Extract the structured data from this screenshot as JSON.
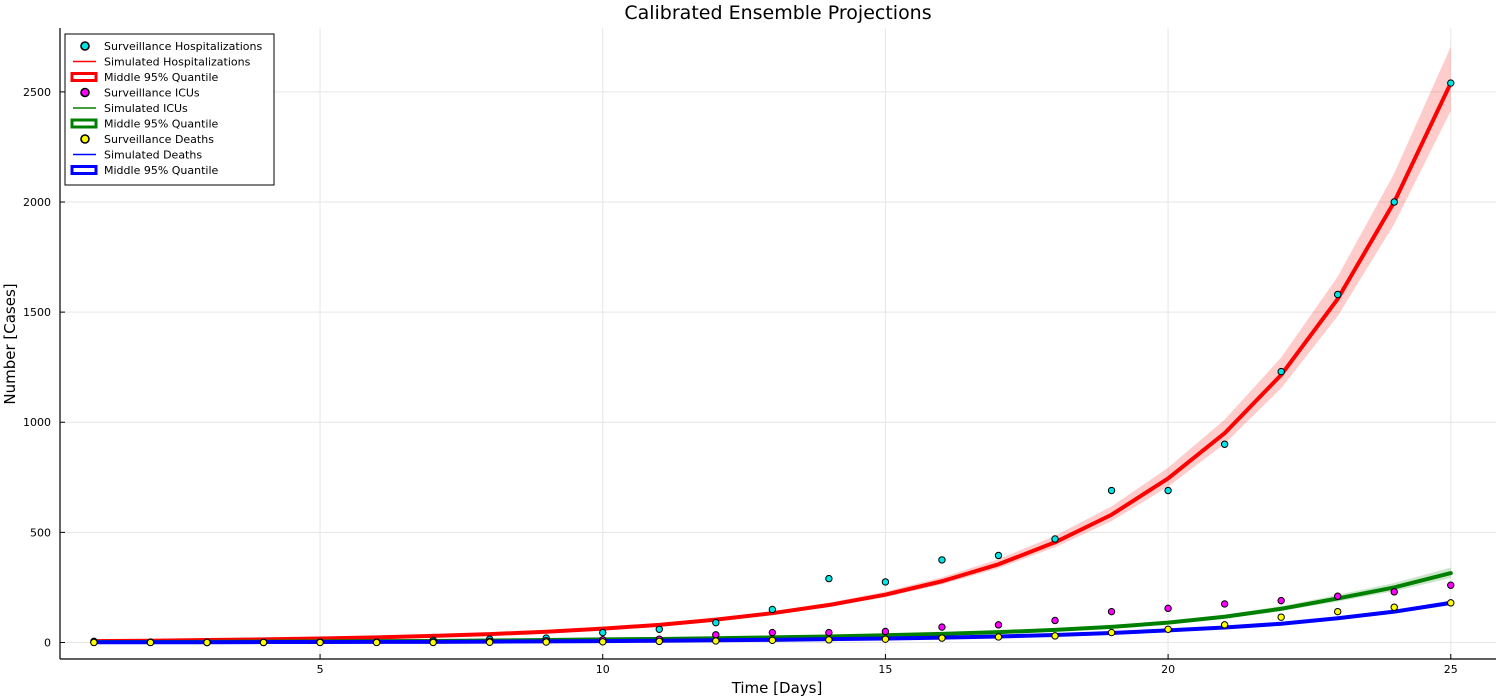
{
  "chart_data": {
    "type": "line",
    "title": "Calibrated Ensemble Projections",
    "xlabel": "Time [Days]",
    "ylabel": "Number [Cases]",
    "xlim": [
      0.4,
      25.8
    ],
    "ylim": [
      -75,
      2790
    ],
    "xticks": [
      5,
      10,
      15,
      20,
      25
    ],
    "yticks": [
      0,
      500,
      1000,
      1500,
      2000,
      2500
    ],
    "grid": true,
    "legend_position": "top-left",
    "x": [
      1,
      2,
      3,
      4,
      5,
      6,
      7,
      8,
      9,
      10,
      11,
      12,
      13,
      14,
      15,
      16,
      17,
      18,
      19,
      20,
      21,
      22,
      23,
      24,
      25
    ],
    "series": [
      {
        "group": "hospitalizations",
        "observed": {
          "name": "Surveillance Hospitalizations",
          "color": "#00e5e5",
          "values": [
            5,
            2,
            0,
            0,
            2,
            2,
            10,
            15,
            20,
            45,
            60,
            90,
            150,
            290,
            275,
            375,
            395,
            470,
            690,
            690,
            900,
            1230,
            1580,
            2000,
            2540
          ]
        },
        "simulated": {
          "name": "Simulated Hospitalizations",
          "color": "#ff0000",
          "values": [
            6,
            8,
            11,
            14,
            18,
            23,
            30,
            38,
            49,
            63,
            80,
            104,
            133,
            170,
            217,
            278,
            355,
            455,
            580,
            745,
            950,
            1215,
            1560,
            2000,
            2540
          ]
        },
        "band": {
          "name": "Middle 95% Quantile",
          "low_scale": 0.95,
          "high_scale": 1.065
        }
      },
      {
        "group": "icus",
        "observed": {
          "name": "Surveillance ICUs",
          "color": "#ff00ff",
          "values": [
            1,
            0,
            0,
            0,
            1,
            1,
            3,
            5,
            8,
            12,
            15,
            35,
            45,
            45,
            50,
            70,
            80,
            100,
            140,
            155,
            175,
            190,
            210,
            230,
            260
          ]
        },
        "simulated": {
          "name": "Simulated ICUs",
          "color": "#008000",
          "values": [
            2,
            2,
            3,
            4,
            5,
            6,
            7,
            9,
            11,
            14,
            16,
            19,
            23,
            27,
            33,
            39,
            47,
            57,
            71,
            90,
            117,
            153,
            200,
            250,
            315
          ]
        },
        "band": {
          "name": "Middle 95% Quantile",
          "low_scale": 0.93,
          "high_scale": 1.08
        }
      },
      {
        "group": "deaths",
        "observed": {
          "name": "Surveillance Deaths",
          "color": "#ffff00",
          "values": [
            0,
            0,
            0,
            0,
            0,
            0,
            0,
            1,
            2,
            3,
            5,
            7,
            10,
            12,
            15,
            20,
            25,
            30,
            45,
            60,
            80,
            115,
            140,
            160,
            180
          ]
        },
        "simulated": {
          "name": "Simulated Deaths",
          "color": "#0000ff",
          "values": [
            1,
            1,
            1,
            2,
            2,
            3,
            3,
            4,
            5,
            6,
            8,
            10,
            12,
            15,
            18,
            22,
            27,
            34,
            43,
            55,
            68,
            85,
            110,
            140,
            180
          ]
        },
        "band": {
          "name": "Middle 95% Quantile",
          "low_scale": 0.94,
          "high_scale": 1.06
        }
      }
    ],
    "legend": [
      {
        "label": "Surveillance Hospitalizations",
        "kind": "marker",
        "color": "#00e5e5"
      },
      {
        "label": "Simulated Hospitalizations",
        "kind": "line",
        "color": "#ff0000"
      },
      {
        "label": "Middle 95% Quantile",
        "kind": "band",
        "color": "#ff0000"
      },
      {
        "label": "Surveillance ICUs",
        "kind": "marker",
        "color": "#ff00ff"
      },
      {
        "label": "Simulated ICUs",
        "kind": "line",
        "color": "#008000"
      },
      {
        "label": "Middle 95% Quantile",
        "kind": "band",
        "color": "#008000"
      },
      {
        "label": "Surveillance Deaths",
        "kind": "marker",
        "color": "#ffff00"
      },
      {
        "label": "Simulated Deaths",
        "kind": "line",
        "color": "#0000ff"
      },
      {
        "label": "Middle 95% Quantile",
        "kind": "band",
        "color": "#0000ff"
      }
    ]
  }
}
